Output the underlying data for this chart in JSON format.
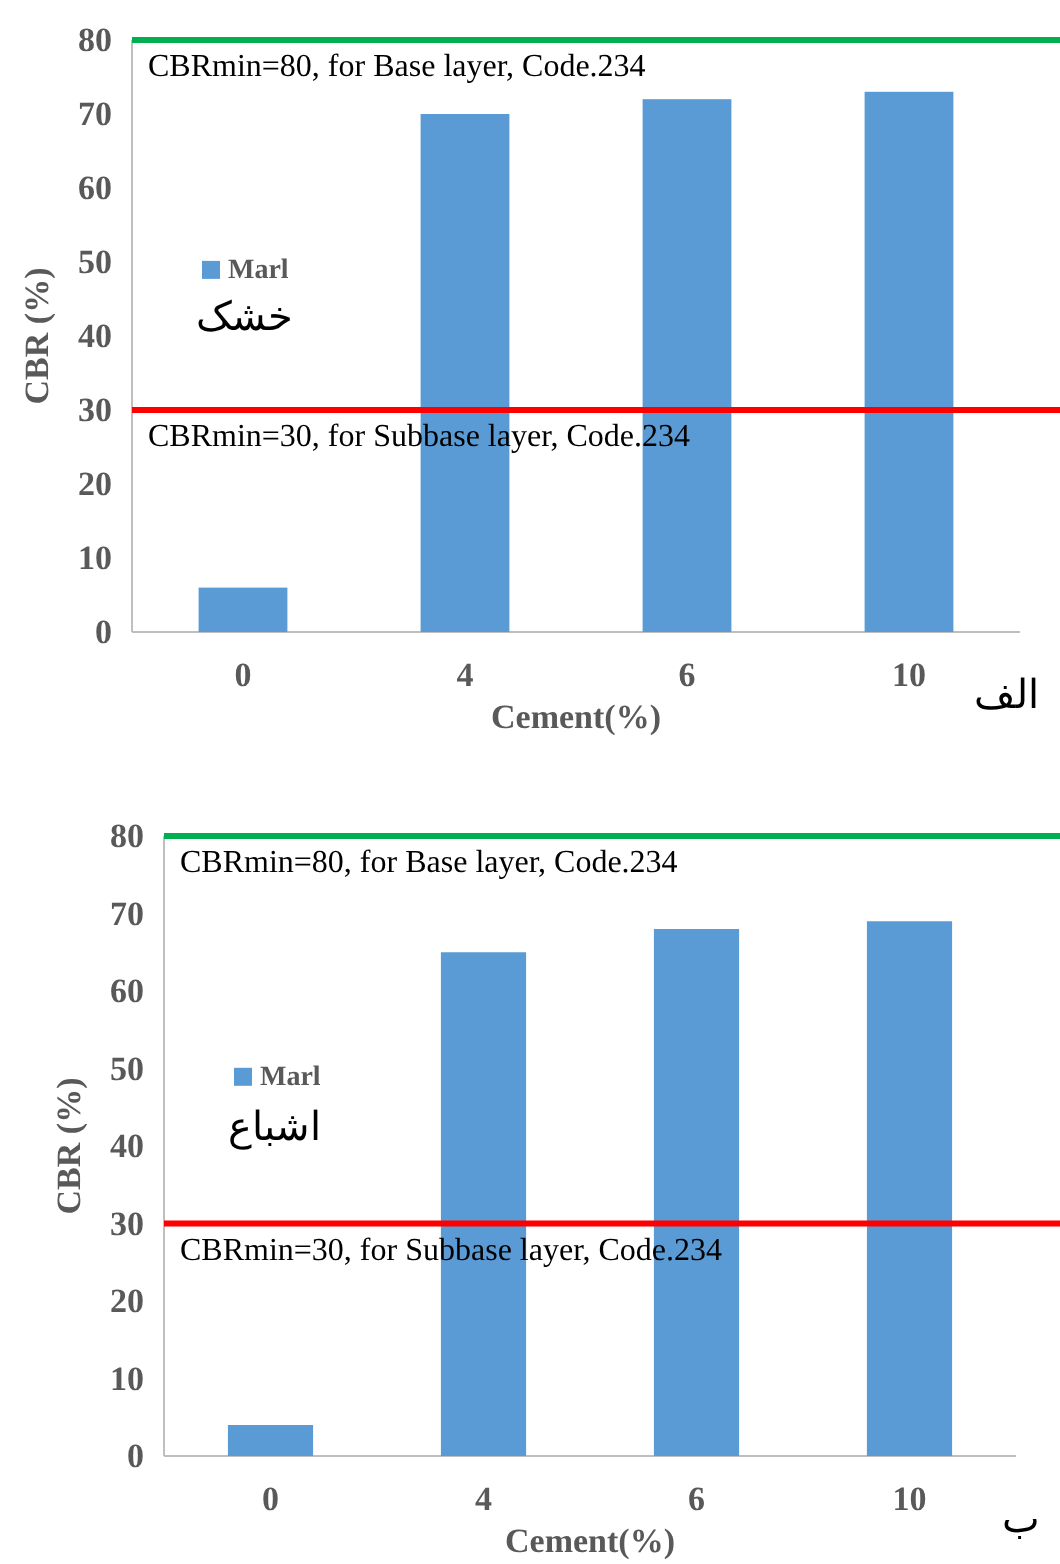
{
  "chart_data": [
    {
      "type": "bar",
      "categories": [
        "0",
        "4",
        "6",
        "10"
      ],
      "xlabel": "Cement(%)",
      "ylabel": "CBR (%)",
      "ylim": [
        0,
        80
      ],
      "yticks": [
        0,
        10,
        20,
        30,
        40,
        50,
        60,
        70,
        80
      ],
      "grid": false,
      "legend": "left",
      "series": [
        {
          "name": "Marl",
          "color": "#5b9bd5",
          "values": [
            6,
            70,
            72,
            73
          ]
        }
      ],
      "ref_lines": [
        {
          "axis": "y",
          "value": 80,
          "label": "CBRmin=80, for Base layer, Code.234",
          "color": "#00b050"
        },
        {
          "axis": "y",
          "value": 30,
          "label": "CBRmin=30, for Subbase layer, Code.234",
          "color": "#ff0000"
        }
      ],
      "annotations": [
        "خشک",
        "الف"
      ]
    },
    {
      "type": "bar",
      "categories": [
        "0",
        "4",
        "6",
        "10"
      ],
      "xlabel": "Cement(%)",
      "ylabel": "CBR (%)",
      "ylim": [
        0,
        80
      ],
      "yticks": [
        0,
        10,
        20,
        30,
        40,
        50,
        60,
        70,
        80
      ],
      "grid": false,
      "legend": "left",
      "series": [
        {
          "name": "Marl",
          "color": "#5b9bd5",
          "values": [
            4,
            65,
            68,
            69
          ]
        }
      ],
      "ref_lines": [
        {
          "axis": "y",
          "value": 80,
          "label": "CBRmin=80, for Base layer, Code.234",
          "color": "#00b050"
        },
        {
          "axis": "y",
          "value": 30,
          "label": "CBRmin=30, for Subbase layer, Code.234",
          "color": "#ff0000"
        }
      ],
      "annotations": [
        "اشباع",
        "ب"
      ]
    }
  ]
}
